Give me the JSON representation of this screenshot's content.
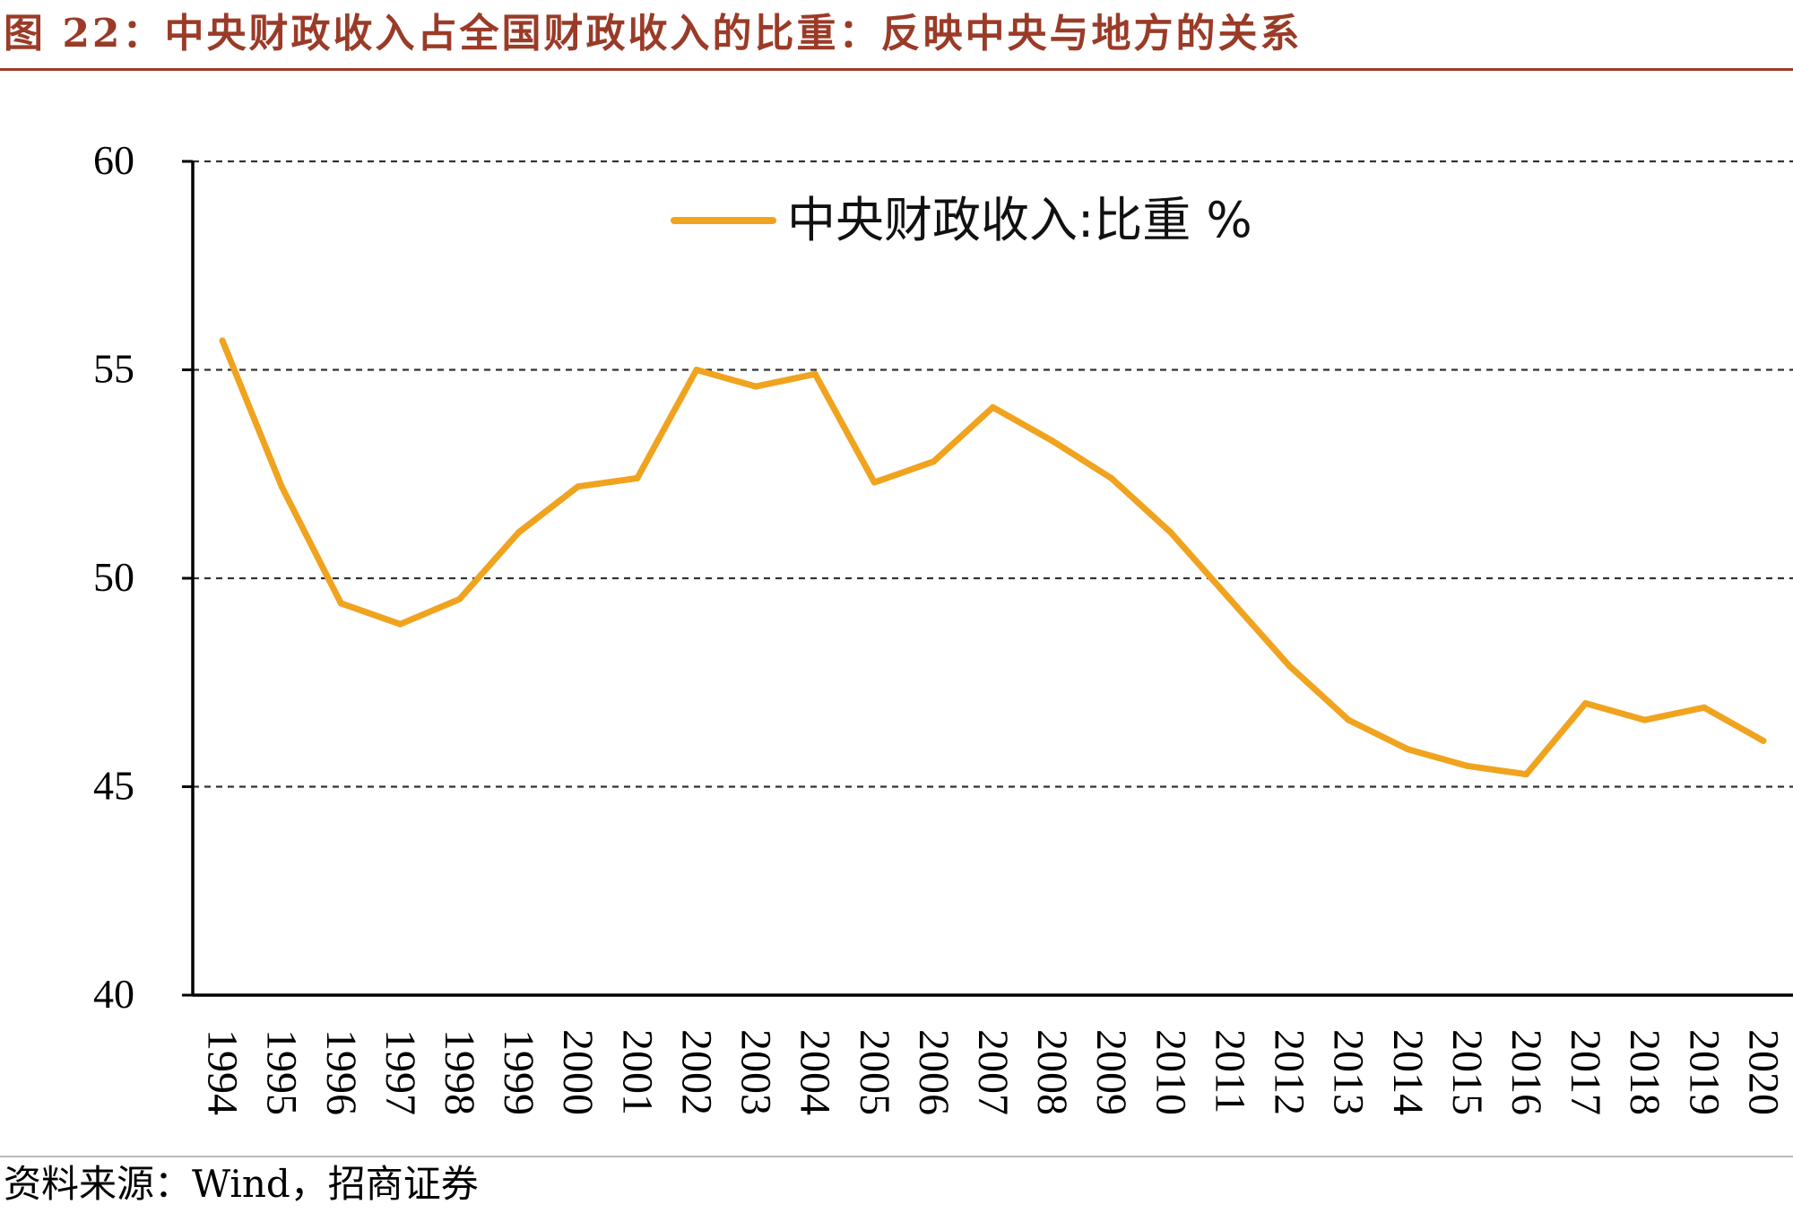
{
  "figure": {
    "title": "图 22：中央财政收入占全国财政收入的比重：反映中央与地方的关系",
    "source": "资料来源：Wind，招商证券"
  },
  "colors": {
    "accent": "#9a3b28",
    "series": "#f0a31e",
    "grid": "#333333"
  },
  "chart_data": {
    "type": "line",
    "title": "",
    "xlabel": "",
    "ylabel": "",
    "x": [
      "1994",
      "1995",
      "1996",
      "1997",
      "1998",
      "1999",
      "2000",
      "2001",
      "2002",
      "2003",
      "2004",
      "2005",
      "2006",
      "2007",
      "2008",
      "2009",
      "2010",
      "2011",
      "2012",
      "2013",
      "2014",
      "2015",
      "2016",
      "2017",
      "2018",
      "2019",
      "2020"
    ],
    "series": [
      {
        "name": "中央财政收入:比重 %",
        "values": [
          55.7,
          52.2,
          49.4,
          48.9,
          49.5,
          51.1,
          52.2,
          52.4,
          55.0,
          54.6,
          54.9,
          52.3,
          52.8,
          54.1,
          53.3,
          52.4,
          51.1,
          49.5,
          47.9,
          46.6,
          45.9,
          45.5,
          45.3,
          47.0,
          46.6,
          46.9,
          46.1
        ]
      }
    ],
    "ylim": [
      40,
      60
    ],
    "yticks": [
      40,
      45,
      50,
      55,
      60
    ],
    "grid": "horizontal dashed",
    "legend": "top-center"
  }
}
